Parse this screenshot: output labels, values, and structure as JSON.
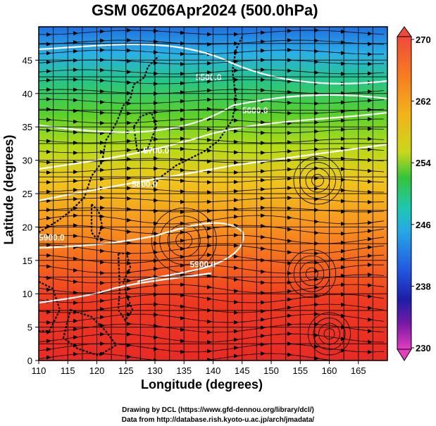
{
  "title": "GSM 06Z06Apr2024 (500.0hPa)",
  "xlabel": "Longitude (degrees)",
  "ylabel": "Latitude (degrees)",
  "credits": {
    "line1": "Drawing by DCL (https://www.gfd-dennou.org/library/dcl/)",
    "line2": "Data from http://database.rish.kyoto-u.ac.jp/arch/jmadata/"
  },
  "chart_data": {
    "type": "heatmap",
    "x_ticks": [
      "110",
      "115",
      "120",
      "125",
      "130",
      "135",
      "140",
      "145",
      "150",
      "155",
      "160",
      "165"
    ],
    "y_ticks": [
      "0",
      "5",
      "10",
      "15",
      "20",
      "25",
      "30",
      "35",
      "40",
      "45"
    ],
    "xlim": [
      110,
      170
    ],
    "ylim": [
      0,
      50
    ],
    "colorbar": {
      "ticks": [
        "270",
        "262",
        "254",
        "246",
        "238",
        "230"
      ],
      "range": [
        230,
        270
      ]
    },
    "contours": [
      {
        "label": "5500.0",
        "lat": 42
      },
      {
        "label": "5600.0",
        "lat": 37
      },
      {
        "label": "5700.0",
        "lat": 31
      },
      {
        "label": "5800.0",
        "lat": 26
      },
      {
        "label": "5900.0",
        "lat": 18
      },
      {
        "label": "5900.0",
        "lat": 14
      }
    ]
  }
}
